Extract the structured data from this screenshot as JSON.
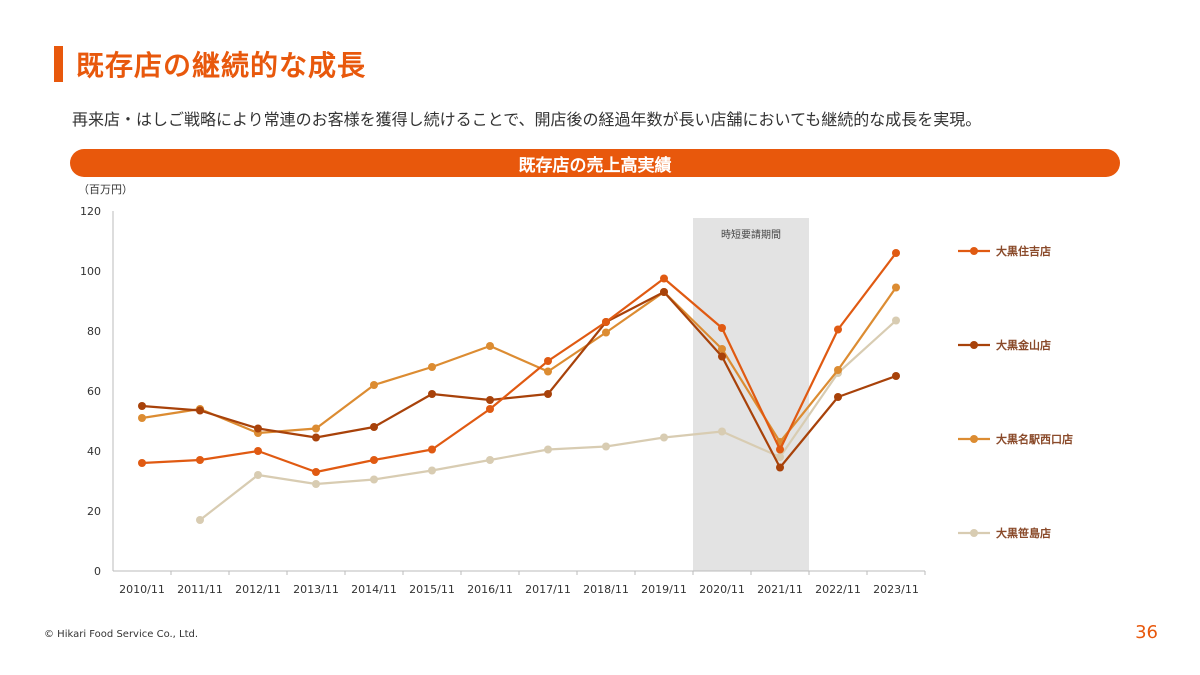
{
  "page": {
    "title": "既存店の継続的な成長",
    "subtitle": "再来店・はしご戦略により常連のお客様を獲得し続けることで、開店後の経過年数が長い店舗においても継続的な成長を実現。",
    "banner": "既存店の売上高実績",
    "copyright": "© Hikari Food Service Co., Ltd.",
    "page_number": "36",
    "accent_color": "#e8580c"
  },
  "chart_data": {
    "type": "line",
    "unit_label": "（百万円）",
    "categories": [
      "2010/11",
      "2011/11",
      "2012/11",
      "2013/11",
      "2014/11",
      "2015/11",
      "2016/11",
      "2017/11",
      "2018/11",
      "2019/11",
      "2020/11",
      "2021/11",
      "2022/11",
      "2023/11"
    ],
    "ylim": [
      0,
      120
    ],
    "yticks": [
      0,
      20,
      40,
      60,
      80,
      100,
      120
    ],
    "grid": false,
    "legend_position": "right",
    "shaded_period": {
      "label": "時短要請期間",
      "from": "2020/11",
      "to": "2021/11",
      "color": "#e3e3e3"
    },
    "series": [
      {
        "name": "大黒住吉店",
        "color": "#e05a12",
        "values": [
          36,
          37,
          40,
          33,
          37,
          40.5,
          54,
          70,
          83,
          97.5,
          81,
          40.5,
          80.5,
          106
        ]
      },
      {
        "name": "大黒金山店",
        "color": "#a8420a",
        "values": [
          55,
          53.5,
          47.5,
          44.5,
          48,
          59,
          57,
          59,
          83,
          93,
          71.5,
          34.5,
          58,
          65
        ]
      },
      {
        "name": "大黒名駅西口店",
        "color": "#dc8c32",
        "values": [
          51,
          54,
          46,
          47.5,
          62,
          68,
          75,
          66.5,
          79.5,
          93,
          74,
          43,
          67,
          94.5
        ]
      },
      {
        "name": "大黒笹島店",
        "color": "#d8ccb2",
        "values": [
          null,
          17,
          32,
          29,
          30.5,
          33.5,
          37,
          40.5,
          41.5,
          44.5,
          46.5,
          38,
          66,
          83.5
        ]
      }
    ]
  }
}
